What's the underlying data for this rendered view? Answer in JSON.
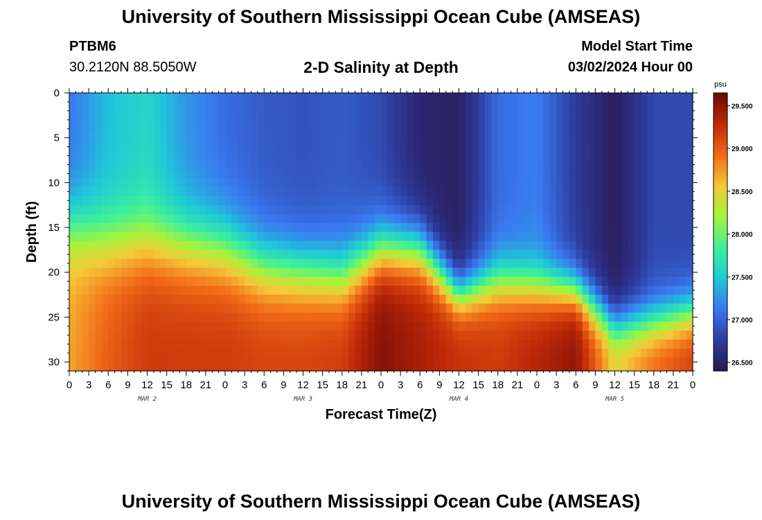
{
  "header": {
    "title": "University of Southern Mississippi Ocean Cube (AMSEAS)",
    "station_id": "PTBM6",
    "station_coords": "30.2120N  88.5050W",
    "chart_title": "2-D Salinity at Depth",
    "model_start_label": "Model Start Time",
    "model_start_value": "03/02/2024 Hour 00"
  },
  "footer": {
    "title": "University of Southern Mississippi Ocean Cube (AMSEAS)"
  },
  "colors": {
    "background": "#ffffff",
    "axis": "#000000",
    "colormap": [
      "#2a1850",
      "#2d3b9c",
      "#3a78f0",
      "#1fc8d8",
      "#3df09a",
      "#a4f43c",
      "#f5c838",
      "#f26a18",
      "#c02a08",
      "#6e0606"
    ]
  },
  "chart_data": {
    "type": "heatmap",
    "title": "2-D Salinity at Depth",
    "xlabel": "Forecast Time(Z)",
    "ylabel": "Depth (ft)",
    "colorbar_label": "psu",
    "x_hours": [
      0,
      96
    ],
    "x_tick_step_hours": 3,
    "x_tick_labels": [
      "0",
      "3",
      "6",
      "9",
      "12",
      "15",
      "18",
      "21",
      "0",
      "3",
      "6",
      "9",
      "12",
      "15",
      "18",
      "21",
      "0",
      "3",
      "6",
      "9",
      "12",
      "15",
      "18",
      "21",
      "0",
      "3",
      "6",
      "9",
      "12",
      "15",
      "18",
      "21",
      "0"
    ],
    "date_labels": [
      {
        "label": "MAR 2",
        "hour": 12
      },
      {
        "label": "MAR 3",
        "hour": 36
      },
      {
        "label": "MAR 4",
        "hour": 60
      },
      {
        "label": "MAR 5",
        "hour": 84
      }
    ],
    "ylim": [
      0,
      31
    ],
    "y_ticks": [
      0,
      5,
      10,
      15,
      20,
      25,
      30
    ],
    "y_tick_labels": [
      "0",
      "5",
      "10",
      "15",
      "20",
      "25",
      "30"
    ],
    "colorbar_range": [
      26.4,
      29.65
    ],
    "colorbar_ticks": [
      26.5,
      27.0,
      27.5,
      28.0,
      28.5,
      29.0,
      29.5
    ],
    "colorbar_tick_labels": [
      "26.500",
      "27.000",
      "27.500",
      "28.000",
      "28.500",
      "29.000",
      "29.500"
    ],
    "depth_levels_ft": [
      0,
      1,
      2,
      3,
      4,
      5,
      6,
      7,
      8,
      9,
      10,
      11,
      12,
      13,
      14,
      15,
      16,
      17,
      18,
      19,
      20,
      21,
      22,
      23,
      24,
      25,
      26,
      27,
      28,
      29,
      30
    ],
    "profile_hours": [
      0,
      6,
      12,
      18,
      24,
      30,
      36,
      42,
      48,
      54,
      60,
      66,
      72,
      78,
      84,
      90,
      96
    ],
    "salinity_profiles_psu": [
      {
        "hour": 0,
        "surface": 27.1,
        "layer_depth_ft": 15.0,
        "bottom": 28.7,
        "sharpness": 2.5
      },
      {
        "hour": 6,
        "surface": 27.45,
        "layer_depth_ft": 16.5,
        "bottom": 29.0,
        "sharpness": 2.5
      },
      {
        "hour": 12,
        "surface": 27.6,
        "layer_depth_ft": 16.5,
        "bottom": 29.2,
        "sharpness": 2.5
      },
      {
        "hour": 18,
        "surface": 27.25,
        "layer_depth_ft": 17.0,
        "bottom": 29.2,
        "sharpness": 2.5
      },
      {
        "hour": 24,
        "surface": 27.05,
        "layer_depth_ft": 17.5,
        "bottom": 29.2,
        "sharpness": 2.5
      },
      {
        "hour": 30,
        "surface": 26.95,
        "layer_depth_ft": 19.5,
        "bottom": 29.15,
        "sharpness": 2.3
      },
      {
        "hour": 36,
        "surface": 26.9,
        "layer_depth_ft": 20.0,
        "bottom": 29.15,
        "sharpness": 2.2
      },
      {
        "hour": 42,
        "surface": 26.95,
        "layer_depth_ft": 20.5,
        "bottom": 29.2,
        "sharpness": 2.2
      },
      {
        "hour": 48,
        "surface": 26.85,
        "layer_depth_ft": 17.5,
        "bottom": 29.55,
        "sharpness": 2.0
      },
      {
        "hour": 54,
        "surface": 26.55,
        "layer_depth_ft": 17.5,
        "bottom": 29.4,
        "sharpness": 2.0
      },
      {
        "hour": 60,
        "surface": 26.5,
        "layer_depth_ft": 22.5,
        "bottom": 29.25,
        "sharpness": 1.5
      },
      {
        "hour": 66,
        "surface": 27.05,
        "layer_depth_ft": 21.0,
        "bottom": 29.2,
        "sharpness": 1.8
      },
      {
        "hour": 72,
        "surface": 27.15,
        "layer_depth_ft": 21.5,
        "bottom": 29.35,
        "sharpness": 1.8
      },
      {
        "hour": 78,
        "surface": 26.75,
        "layer_depth_ft": 22.0,
        "bottom": 29.5,
        "sharpness": 1.5
      },
      {
        "hour": 84,
        "surface": 26.45,
        "layer_depth_ft": 26.0,
        "bottom": 28.6,
        "sharpness": 1.6
      },
      {
        "hour": 90,
        "surface": 26.85,
        "layer_depth_ft": 25.5,
        "bottom": 29.0,
        "sharpness": 1.6
      },
      {
        "hour": 96,
        "surface": 26.85,
        "layer_depth_ft": 24.5,
        "bottom": 29.2,
        "sharpness": 1.6
      }
    ]
  }
}
